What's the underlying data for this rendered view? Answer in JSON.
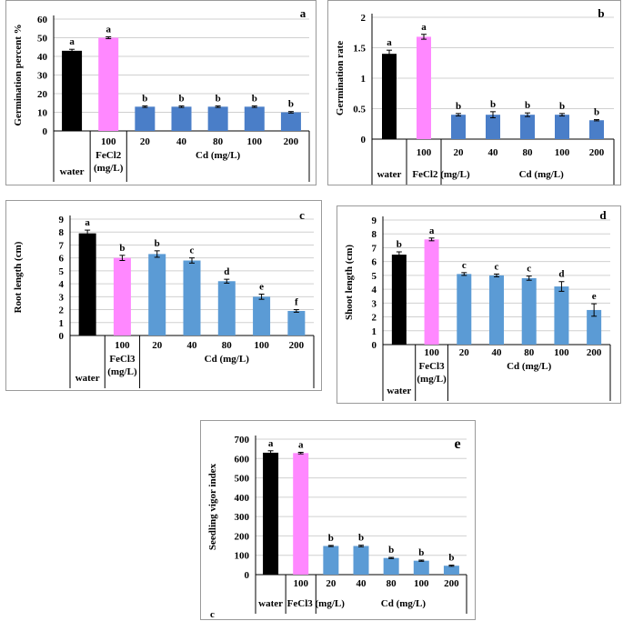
{
  "colors": {
    "water": "#000000",
    "fe": "#ff88ff",
    "cd_a": "#4a7ec8",
    "cd_b": "#5b9bd5",
    "grid": "#d0d0d0",
    "axis": "#000000"
  },
  "chart_data": [
    {
      "id": "a",
      "type": "bar",
      "panel_label": "a",
      "ylabel": "Germination percent %",
      "ylim": [
        0,
        60
      ],
      "yticks": [
        0,
        10,
        20,
        30,
        40,
        50,
        60
      ],
      "categories": [
        "water",
        "100",
        "20",
        "40",
        "80",
        "100",
        "200"
      ],
      "values": [
        43,
        50,
        13,
        13,
        13,
        13,
        10
      ],
      "errors": [
        0.8,
        0.5,
        0.4,
        0.4,
        0.4,
        0.4,
        0.4
      ],
      "letters": [
        "a",
        "a",
        "b",
        "b",
        "b",
        "b",
        "b"
      ],
      "group_labels": {
        "water": "water",
        "fe_top": "FeCl2",
        "fe_bottom": "(mg/L)",
        "cd": "Cd (mg/L)"
      }
    },
    {
      "id": "b",
      "type": "bar",
      "panel_label": "b",
      "ylabel": "Germination rate",
      "ylim": [
        0,
        2
      ],
      "yticks": [
        0,
        0.5,
        1,
        1.5,
        2
      ],
      "categories": [
        "water",
        "100",
        "20",
        "40",
        "80",
        "100",
        "200"
      ],
      "values": [
        1.4,
        1.68,
        0.4,
        0.4,
        0.4,
        0.4,
        0.31
      ],
      "errors": [
        0.06,
        0.04,
        0.02,
        0.05,
        0.03,
        0.02,
        0.01
      ],
      "letters": [
        "a",
        "a",
        "b",
        "b",
        "b",
        "b",
        "b"
      ],
      "group_labels": {
        "water": "water",
        "fe_bottom": "FeCl2 (mg/L)",
        "cd": "Cd (mg/L)"
      }
    },
    {
      "id": "c",
      "type": "bar",
      "panel_label": "c",
      "ylabel": "Root length (cm)",
      "ylim": [
        0,
        9
      ],
      "yticks": [
        0,
        1,
        2,
        3,
        4,
        5,
        6,
        7,
        8,
        9
      ],
      "categories": [
        "water",
        "100",
        "20",
        "40",
        "80",
        "100",
        "200"
      ],
      "values": [
        7.9,
        6.0,
        6.3,
        5.8,
        4.2,
        3.0,
        1.9
      ],
      "errors": [
        0.25,
        0.2,
        0.25,
        0.2,
        0.15,
        0.2,
        0.1
      ],
      "letters": [
        "a",
        "b",
        "b",
        "c",
        "d",
        "e",
        "f"
      ],
      "group_labels": {
        "water": "water",
        "fe_top": "FeCl3",
        "fe_bottom": "(mg/L)",
        "cd": "Cd (mg/L)"
      }
    },
    {
      "id": "d",
      "type": "bar",
      "panel_label": "d",
      "ylabel": "Shoot length (cm)",
      "ylim": [
        0,
        9
      ],
      "yticks": [
        0,
        1,
        2,
        3,
        4,
        5,
        6,
        7,
        8,
        9
      ],
      "categories": [
        "water",
        "100",
        "20",
        "40",
        "80",
        "100",
        "200"
      ],
      "values": [
        6.5,
        7.6,
        5.1,
        5.0,
        4.8,
        4.2,
        2.5
      ],
      "errors": [
        0.2,
        0.1,
        0.1,
        0.1,
        0.15,
        0.35,
        0.45
      ],
      "letters": [
        "b",
        "a",
        "c",
        "c",
        "c",
        "d",
        "e"
      ],
      "group_labels": {
        "water": "water",
        "fe_top": "FeCl3",
        "fe_bottom": "(mg/L)",
        "cd": "Cd (mg/L)"
      }
    },
    {
      "id": "e",
      "type": "bar",
      "panel_label": "e",
      "ylabel": "Seedling vigor index",
      "ylim": [
        0,
        700
      ],
      "yticks": [
        0,
        100,
        200,
        300,
        400,
        500,
        600,
        700
      ],
      "categories": [
        "water",
        "100",
        "20",
        "40",
        "80",
        "100",
        "200"
      ],
      "values": [
        630,
        628,
        148,
        148,
        86,
        72,
        46
      ],
      "errors": [
        10,
        4,
        3,
        4,
        3,
        3,
        3
      ],
      "letters": [
        "a",
        "a",
        "b",
        "b",
        "b",
        "b",
        "b"
      ],
      "group_labels": {
        "water": "water",
        "fe_bottom": "FeCl3 (mg/L)",
        "cd": "Cd (mg/L)"
      },
      "corner_note": "c"
    }
  ]
}
